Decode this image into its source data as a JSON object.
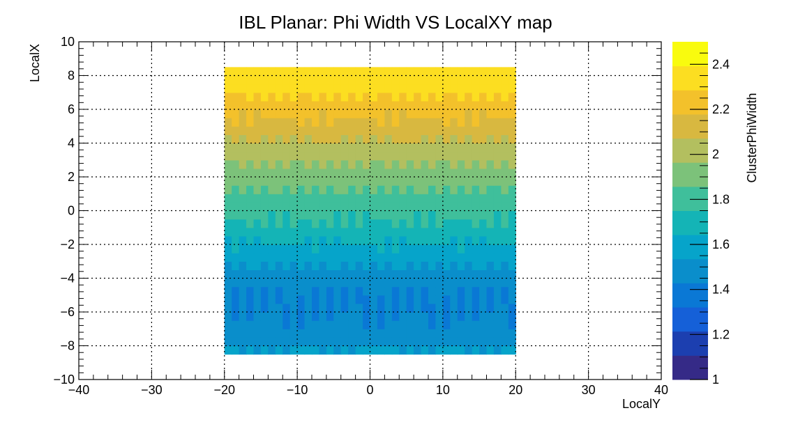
{
  "chart_data": {
    "type": "heatmap",
    "title": "IBL Planar: Phi Width VS LocalXY map",
    "xlabel": "LocalY",
    "ylabel": "LocalX",
    "zlabel": "ClusterPhiWidth",
    "xlim": [
      -40,
      40
    ],
    "ylim": [
      -10,
      10
    ],
    "zlim": [
      1,
      2.5
    ],
    "x_ticks": [
      "−40",
      "−30",
      "−20",
      "−10",
      "0",
      "10",
      "20",
      "30",
      "40"
    ],
    "y_ticks": [
      "−10",
      "−8",
      "−6",
      "−4",
      "−2",
      "0",
      "2",
      "4",
      "6",
      "8",
      "10"
    ],
    "z_ticks": [
      "1",
      "1.2",
      "1.4",
      "1.6",
      "1.8",
      "2",
      "2.2",
      "2.4"
    ],
    "grid": true,
    "filled_region": {
      "x_range": [
        -20,
        20
      ],
      "y_range": [
        -8.5,
        8.5
      ]
    },
    "row_values_bottom_to_top": [
      {
        "y": -8.25,
        "z": 1.55
      },
      {
        "y": -7.75,
        "z": 1.5
      },
      {
        "y": -7.25,
        "z": 1.47
      },
      {
        "y": -6.75,
        "z": 1.45
      },
      {
        "y": -6.25,
        "z": 1.44
      },
      {
        "y": -5.75,
        "z": 1.43
      },
      {
        "y": -5.25,
        "z": 1.43
      },
      {
        "y": -4.75,
        "z": 1.44
      },
      {
        "y": -4.25,
        "z": 1.46
      },
      {
        "y": -3.75,
        "z": 1.5
      },
      {
        "y": -3.25,
        "z": 1.54
      },
      {
        "y": -2.75,
        "z": 1.58
      },
      {
        "y": -2.25,
        "z": 1.62
      },
      {
        "y": -1.75,
        "z": 1.66
      },
      {
        "y": -1.25,
        "z": 1.7
      },
      {
        "y": -0.75,
        "z": 1.74
      },
      {
        "y": -0.25,
        "z": 1.77
      },
      {
        "y": 0.25,
        "z": 1.8
      },
      {
        "y": 0.75,
        "z": 1.83
      },
      {
        "y": 1.25,
        "z": 1.86
      },
      {
        "y": 1.75,
        "z": 1.89
      },
      {
        "y": 2.25,
        "z": 1.92
      },
      {
        "y": 2.75,
        "z": 1.96
      },
      {
        "y": 3.25,
        "z": 2.0
      },
      {
        "y": 3.75,
        "z": 2.04
      },
      {
        "y": 4.25,
        "z": 2.08
      },
      {
        "y": 4.75,
        "z": 2.12
      },
      {
        "y": 5.25,
        "z": 2.16
      },
      {
        "y": 5.75,
        "z": 2.2
      },
      {
        "y": 6.25,
        "z": 2.24
      },
      {
        "y": 6.75,
        "z": 2.28
      },
      {
        "y": 7.25,
        "z": 2.32
      },
      {
        "y": 7.75,
        "z": 2.35
      },
      {
        "y": 8.25,
        "z": 2.34
      }
    ],
    "palette": [
      "#352a87",
      "#1c3fb0",
      "#1560d8",
      "#0a78d5",
      "#0a8ecb",
      "#06a4ca",
      "#14b4b6",
      "#3fbf9b",
      "#7cc27a",
      "#b3bf5f",
      "#d8b840",
      "#f3c12b",
      "#fcde21",
      "#f9fb0e"
    ]
  }
}
